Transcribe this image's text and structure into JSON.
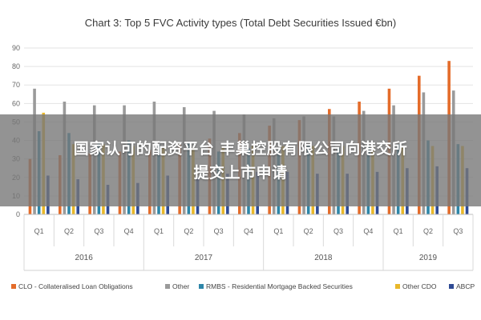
{
  "chart_data": {
    "type": "bar",
    "title": "Chart 3: Top 5 FVC Activity types (Total Debt Securities Issued €bn)",
    "ylim": [
      0,
      90
    ],
    "yticks": [
      0,
      10,
      20,
      30,
      40,
      50,
      60,
      70,
      80,
      90
    ],
    "grid": true,
    "legend_position": "bottom",
    "categories": [
      "Q1",
      "Q2",
      "Q3",
      "Q4",
      "Q1",
      "Q2",
      "Q3",
      "Q4",
      "Q1",
      "Q2",
      "Q3",
      "Q4",
      "Q1",
      "Q2",
      "Q3"
    ],
    "groups": [
      {
        "label": "2016",
        "count": 4
      },
      {
        "label": "2017",
        "count": 4
      },
      {
        "label": "2018",
        "count": 4
      },
      {
        "label": "2019",
        "count": 3
      }
    ],
    "series": [
      {
        "name": "CLO - Collateralised Loan Obligations",
        "color": "#e46c2a",
        "values": [
          30,
          32,
          33,
          34,
          35,
          38,
          41,
          44,
          48,
          51,
          57,
          61,
          68,
          75,
          83
        ]
      },
      {
        "name": "Other",
        "color": "#9a9a9a",
        "values": [
          68,
          61,
          59,
          59,
          61,
          58,
          56,
          54,
          52,
          53,
          53,
          56,
          59,
          66,
          67
        ]
      },
      {
        "name": "RMBS - Residential Mortgage Backed Securities",
        "color": "#2e86a8",
        "values": [
          45,
          44,
          39,
          40,
          38,
          39,
          34,
          36,
          35,
          38,
          36,
          37,
          38,
          40,
          38
        ]
      },
      {
        "name": "Other CDO",
        "color": "#e9b82a",
        "values": [
          55,
          38,
          38,
          37,
          36,
          36,
          37,
          37,
          37,
          37,
          37,
          37,
          37,
          37,
          37
        ]
      },
      {
        "name": "ABCP",
        "color": "#2f4b94",
        "values": [
          21,
          19,
          16,
          17,
          21,
          20,
          22,
          23,
          23,
          22,
          22,
          23,
          25,
          26,
          25
        ]
      }
    ]
  },
  "overlay": {
    "line1": "国家认可的配资平台 丰巢控股有限公司向港交所",
    "line2": "提交上市申请"
  }
}
